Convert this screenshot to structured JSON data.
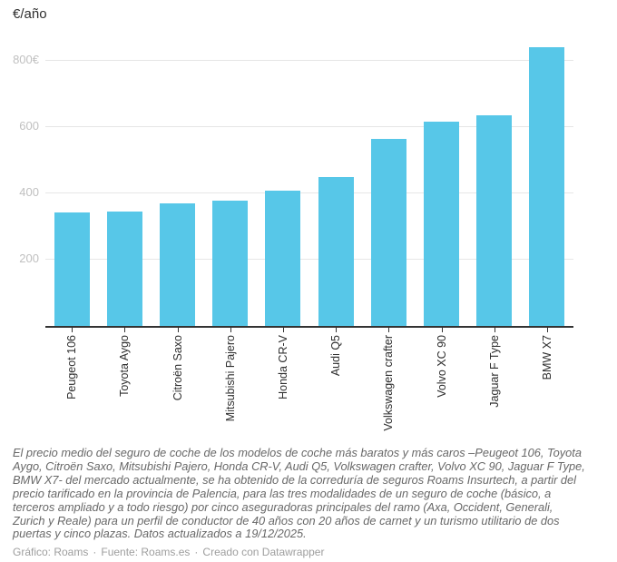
{
  "header": {
    "title": "€/año"
  },
  "chart_data": {
    "type": "bar",
    "title": "€/año",
    "unit": "€/año",
    "categories": [
      "Peugeot 106",
      "Toyota Aygo",
      "Citroën Saxo",
      "Mitsubishi Pajero",
      "Honda CR-V",
      "Audi Q5",
      "Volkswagen crafter",
      "Volvo XC 90",
      "Jaguar F Type",
      "BMW X7"
    ],
    "values": [
      340,
      344,
      367,
      375,
      405,
      447,
      562,
      614,
      633,
      838
    ],
    "ylim": [
      0,
      880
    ],
    "yticks": [
      {
        "value": 200,
        "label": "200"
      },
      {
        "value": 400,
        "label": "400"
      },
      {
        "value": 600,
        "label": "600"
      },
      {
        "value": 800,
        "label": "800€"
      }
    ],
    "grid": true,
    "legend": "none",
    "bar_color": "#57c7e8",
    "gridline_color": "#e6e6e6",
    "axis_color": "#333333",
    "ytick_label_color": "#c0c0c0",
    "xtick_label_color": "#2e2e2e"
  },
  "notes": {
    "text": "El precio medio del seguro de coche de los modelos de coche más baratos y más caros –Peugeot 106, Toyota Aygo, Citroën Saxo, Mitsubishi Pajero, Honda CR-V, Audi Q5, Volkswagen crafter, Volvo XC 90, Jaguar F Type, BMW X7- del mercado actualmente, se ha obtenido de la correduría de seguros Roams Insurtech, a partir del precio tarificado en la provincia de Palencia, para las tres modalidades de un seguro de coche (básico, a terceros ampliado y a todo riesgo) por cinco aseguradoras principales del ramo (Axa, Occident, Generali, Zurich y Reale) para un perfil de conductor de 40 años con 20 años de carnet y un turismo utilitario de dos puertas y cinco plazas. Datos actualizados a 19/12/2025."
  },
  "attribution": {
    "graphic": "Gráfico: Roams",
    "separator": "·",
    "source": "Fuente: Roams.es",
    "tool": "Creado con Datawrapper"
  }
}
